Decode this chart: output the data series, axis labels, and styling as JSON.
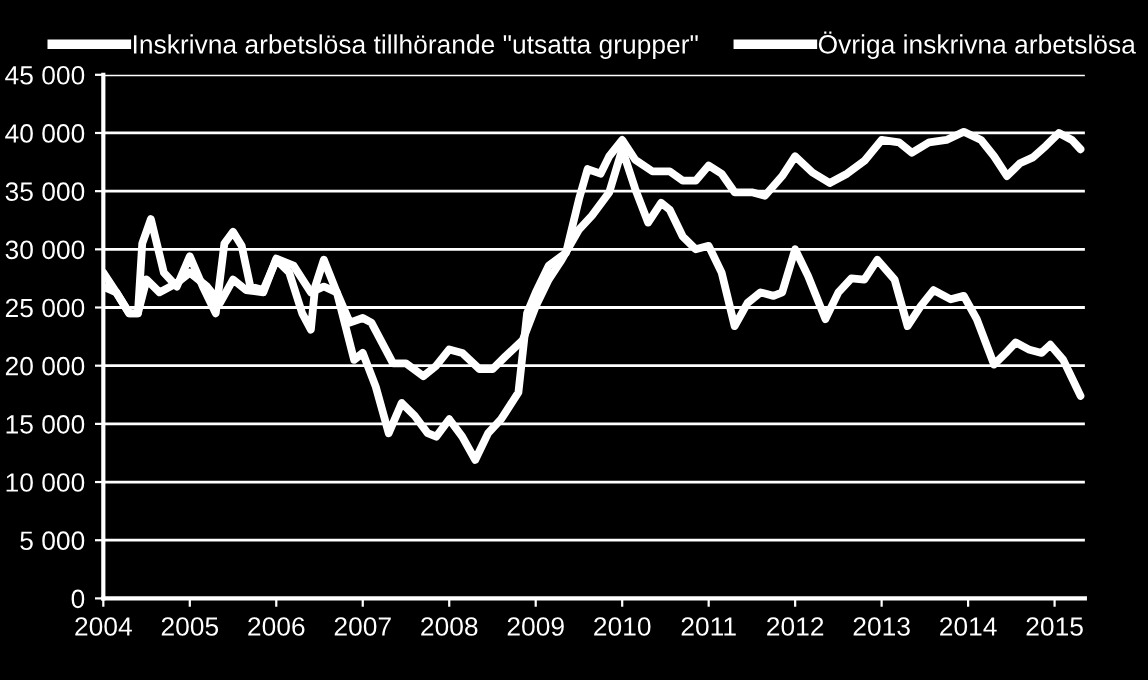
{
  "chart_data": {
    "type": "line",
    "legend": "top",
    "grid": "y",
    "line_style": "solid",
    "marker": "none",
    "xlim": [
      2004,
      2015.35
    ],
    "xticks": [
      2004,
      2005,
      2006,
      2007,
      2008,
      2009,
      2010,
      2011,
      2012,
      2013,
      2014,
      2015
    ],
    "ylim": [
      0,
      45000
    ],
    "yticks": [
      0,
      {
        "value": 5000,
        "label": "5 000"
      },
      {
        "value": 10000,
        "label": "10 000"
      },
      {
        "value": 15000,
        "label": "15 000"
      },
      {
        "value": 20000,
        "label": "20 000"
      },
      {
        "value": 25000,
        "label": "25 000"
      },
      {
        "value": 30000,
        "label": "30 000"
      },
      {
        "value": 35000,
        "label": "35 000"
      },
      {
        "value": 40000,
        "label": "40 000"
      },
      {
        "value": 45000,
        "label": "45 000"
      }
    ],
    "series": [
      {
        "name": "Inskrivna arbetslösa tillhörande \"utsatta grupper\"",
        "color": "#ffffff",
        "x": [
          2004.0,
          2004.15,
          2004.3,
          2004.4,
          2004.45,
          2004.55,
          2004.7,
          2004.85,
          2005.0,
          2005.15,
          2005.3,
          2005.4,
          2005.5,
          2005.6,
          2005.7,
          2005.85,
          2006.0,
          2006.15,
          2006.3,
          2006.4,
          2006.45,
          2006.55,
          2006.7,
          2006.8,
          2006.9,
          2007.0,
          2007.15,
          2007.3,
          2007.45,
          2007.6,
          2007.75,
          2007.85,
          2008.0,
          2008.15,
          2008.3,
          2008.45,
          2008.6,
          2008.8,
          2008.9,
          2009.0,
          2009.15,
          2009.35,
          2009.5,
          2009.6,
          2009.75,
          2009.85,
          2010.0,
          2010.15,
          2010.35,
          2010.55,
          2010.7,
          2010.85,
          2011.0,
          2011.15,
          2011.3,
          2011.5,
          2011.65,
          2011.85,
          2012.0,
          2012.2,
          2012.4,
          2012.6,
          2012.8,
          2013.0,
          2013.2,
          2013.35,
          2013.55,
          2013.75,
          2013.95,
          2014.15,
          2014.3,
          2014.45,
          2014.6,
          2014.75,
          2014.9,
          2015.05,
          2015.2,
          2015.3
        ],
        "values": [
          28000,
          26300,
          24500,
          24500,
          30500,
          32600,
          28000,
          26800,
          29400,
          26800,
          24500,
          30500,
          31500,
          30300,
          26800,
          26500,
          29100,
          28000,
          24500,
          23100,
          26800,
          29100,
          26300,
          23400,
          20500,
          21100,
          18200,
          14200,
          16800,
          15700,
          14200,
          13900,
          15400,
          13900,
          11900,
          14200,
          15400,
          17700,
          24500,
          26300,
          28600,
          29700,
          34300,
          36900,
          36500,
          38000,
          39400,
          37700,
          36700,
          36700,
          35900,
          35900,
          37200,
          36500,
          34900,
          34900,
          34600,
          36300,
          38000,
          36600,
          35700,
          36500,
          37600,
          39400,
          39200,
          38300,
          39200,
          39400,
          40100,
          39400,
          38000,
          36300,
          37400,
          37900,
          38900,
          40000,
          39400,
          38600
        ]
      },
      {
        "name": "Övriga inskrivna arbetslösa",
        "color": "#ffffff",
        "x": [
          2004.0,
          2004.15,
          2004.3,
          2004.4,
          2004.5,
          2004.65,
          2004.85,
          2005.0,
          2005.2,
          2005.35,
          2005.5,
          2005.65,
          2005.85,
          2006.0,
          2006.2,
          2006.4,
          2006.55,
          2006.7,
          2006.85,
          2007.0,
          2007.1,
          2007.35,
          2007.5,
          2007.7,
          2007.85,
          2008.0,
          2008.15,
          2008.35,
          2008.5,
          2008.65,
          2008.85,
          2009.0,
          2009.15,
          2009.3,
          2009.5,
          2009.65,
          2009.85,
          2010.0,
          2010.15,
          2010.3,
          2010.45,
          2010.55,
          2010.7,
          2010.85,
          2011.0,
          2011.15,
          2011.3,
          2011.45,
          2011.6,
          2011.75,
          2011.85,
          2012.0,
          2012.15,
          2012.35,
          2012.5,
          2012.65,
          2012.8,
          2012.95,
          2013.15,
          2013.3,
          2013.45,
          2013.6,
          2013.8,
          2013.95,
          2014.1,
          2014.3,
          2014.45,
          2014.55,
          2014.7,
          2014.85,
          2014.95,
          2015.1,
          2015.3
        ],
        "values": [
          26800,
          26300,
          24500,
          24500,
          27400,
          26300,
          27100,
          28000,
          26800,
          25400,
          27400,
          26500,
          26300,
          29200,
          28600,
          26300,
          26800,
          26300,
          23700,
          24100,
          23700,
          20200,
          20200,
          19100,
          20000,
          21400,
          21100,
          19700,
          19700,
          20800,
          22200,
          25100,
          27400,
          29100,
          31700,
          32900,
          34900,
          38600,
          35200,
          32300,
          34000,
          33400,
          31100,
          30000,
          30300,
          28000,
          23400,
          25400,
          26300,
          26000,
          26300,
          30000,
          27700,
          24000,
          26300,
          27500,
          27400,
          29100,
          27400,
          23400,
          25100,
          26500,
          25700,
          26000,
          24000,
          20100,
          21200,
          22000,
          21400,
          21100,
          21800,
          20500,
          17400
        ]
      }
    ]
  }
}
